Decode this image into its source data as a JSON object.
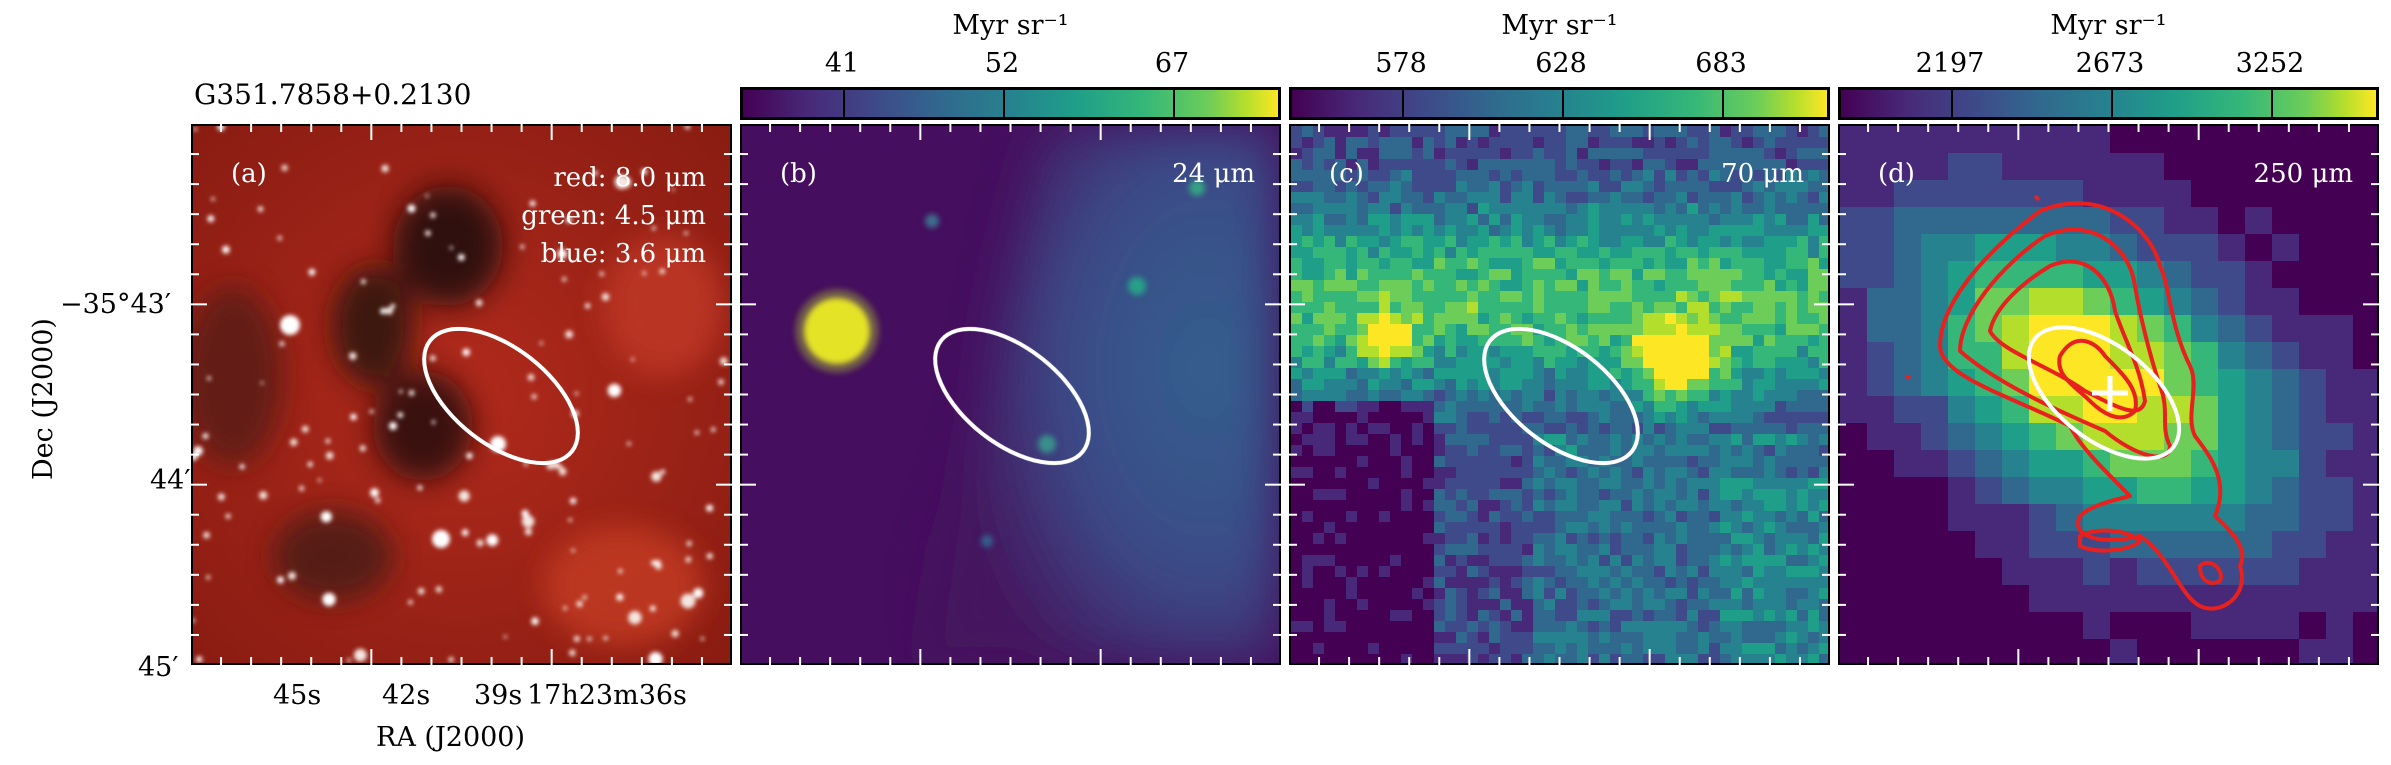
{
  "panel_a": {
    "source_name": "G351.7858+0.2130",
    "label": "(a)",
    "legend_red": "red: 8.0 μm",
    "legend_green": "green: 4.5 μm",
    "legend_blue": "blue: 3.6 μm",
    "ylabel": "Dec (J2000)",
    "xlabel": "RA (J2000)",
    "dec_ticks": [
      "−35°43′",
      "44′",
      "45′"
    ],
    "ra_ticks": [
      "45s",
      "42s",
      "39s",
      "17h23m36s"
    ]
  },
  "panel_b": {
    "label": "(b)",
    "wavelength": "24 μm",
    "cbar_unit": "Myr sr⁻¹",
    "cbar_ticks": [
      "41",
      "52",
      "67"
    ]
  },
  "panel_c": {
    "label": "(c)",
    "wavelength": "70 μm",
    "cbar_unit": "Myr sr⁻¹",
    "cbar_ticks": [
      "578",
      "628",
      "683"
    ]
  },
  "panel_d": {
    "label": "(d)",
    "wavelength": "250 μm",
    "cbar_unit": "Myr sr⁻¹",
    "cbar_ticks": [
      "2197",
      "2673",
      "3252"
    ]
  },
  "colors": {
    "ellipse": "#ffffff",
    "contours": "#e8201e",
    "colormap": "viridis"
  }
}
